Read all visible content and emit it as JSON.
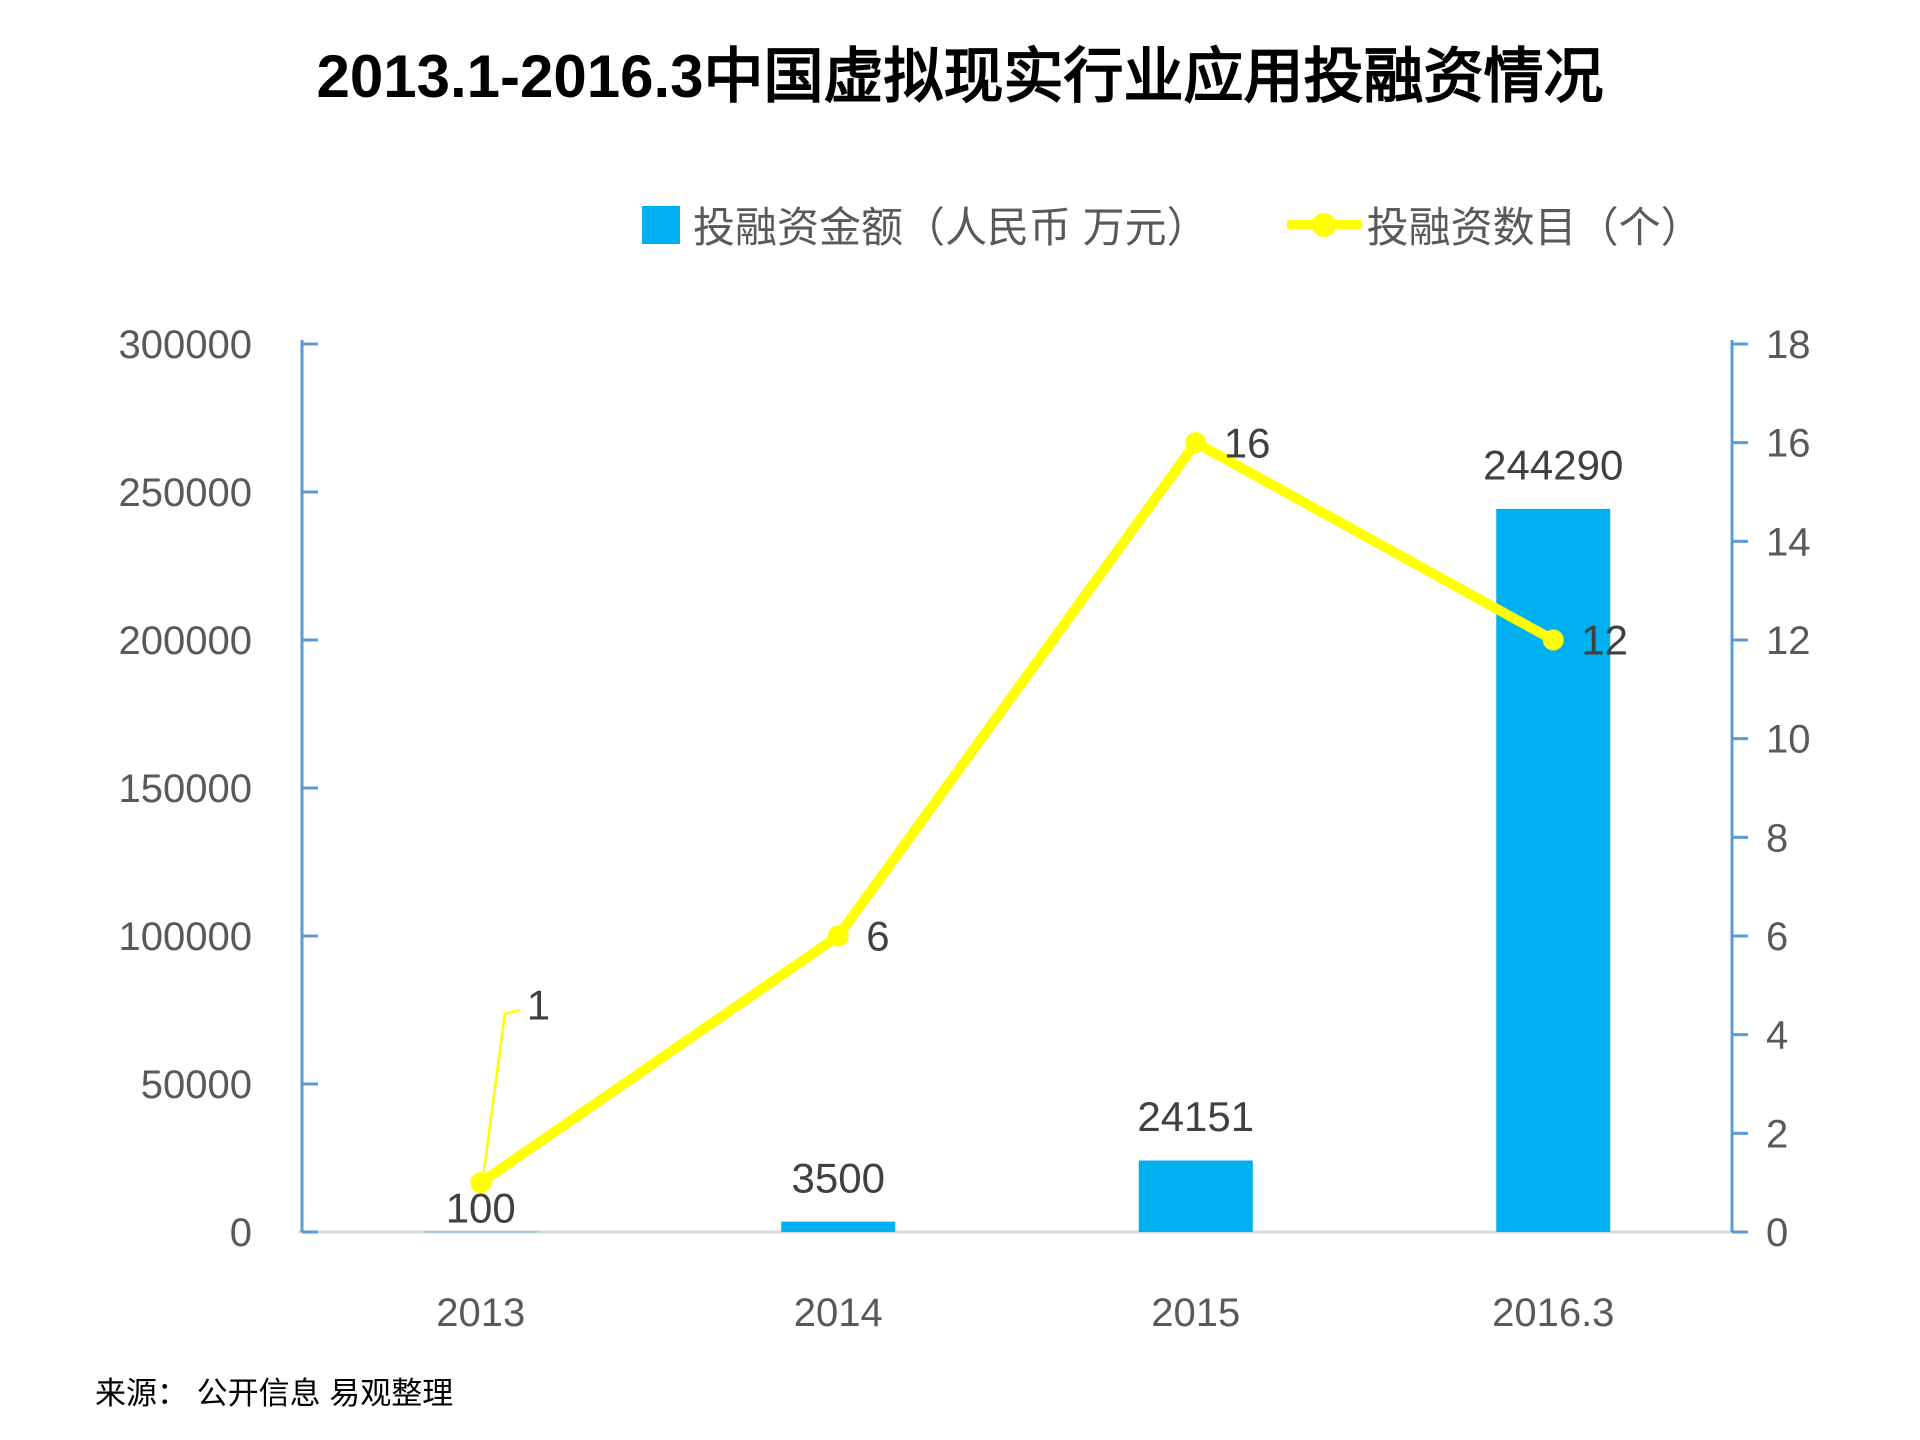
{
  "title": "2013.1-2016.3中国虚拟现实行业应用投融资情况",
  "source": "来源： 公开信息 易观整理",
  "legend": {
    "amount_label": "投融资金额（人民币 万元）",
    "count_label": "投融资数目（个）"
  },
  "chart_data": {
    "type": "combo bar+line, dual axis",
    "title": "2013.1-2016.3中国虚拟现实行业应用投融资情况",
    "categories": [
      "2013",
      "2014",
      "2015",
      "2016.3"
    ],
    "series": [
      {
        "name": "投融资金额（人民币 万元）",
        "type": "bar",
        "axis": "left",
        "color": "#00B0F0",
        "values": [
          100,
          3500,
          24151,
          244290
        ],
        "data_labels": [
          "100",
          "3500",
          "24151",
          "244290"
        ]
      },
      {
        "name": "投融资数目（个）",
        "type": "line",
        "axis": "right",
        "color": "#FFFF00",
        "values": [
          1,
          6,
          16,
          12
        ],
        "data_labels": [
          "1",
          "6",
          "16",
          "12"
        ]
      }
    ],
    "left_axis": {
      "min": 0,
      "max": 300000,
      "step": 50000,
      "ticks": [
        300000,
        250000,
        200000,
        150000,
        100000,
        50000,
        0
      ]
    },
    "right_axis": {
      "min": 0,
      "max": 18,
      "step": 2,
      "ticks": [
        18,
        16,
        14,
        12,
        10,
        8,
        6,
        4,
        2,
        0
      ]
    },
    "grid": false,
    "legend_position": "top",
    "style": {
      "axis_color": "#5B9BD5",
      "baseline_color": "#D9D9D9",
      "tick_label_color": "#595959",
      "data_label_color": "#404040",
      "title_color": "#000000"
    }
  }
}
